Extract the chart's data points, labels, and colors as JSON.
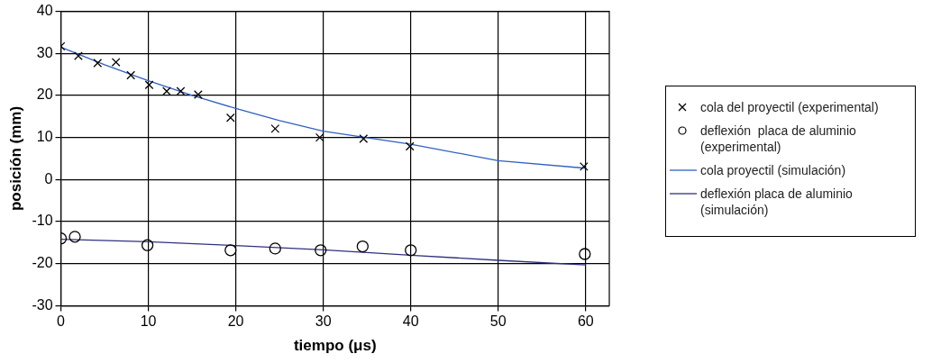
{
  "chart_data": {
    "type": "scatter",
    "xlabel": "tiempo (μs)",
    "ylabel": "posición (mm)",
    "xlim": [
      0,
      62.7
    ],
    "xticks": [
      0,
      10,
      20,
      30,
      40,
      50,
      60
    ],
    "ylim": [
      -30,
      40
    ],
    "yticks": [
      -30,
      -20,
      -10,
      0,
      10,
      20,
      30,
      40
    ],
    "grid": true,
    "legend": "right",
    "series": [
      {
        "name": "cola del proyectil (experimental)",
        "marker": "cross",
        "color": "#000000",
        "x": [
          0,
          2,
          4.2,
          6.3,
          8,
          10.1,
          12.1,
          13.7,
          15.7,
          19.4,
          24.5,
          29.6,
          34.6,
          39.9,
          59.8
        ],
        "values": [
          31.7,
          29.4,
          27.7,
          27.9,
          24.8,
          22.5,
          21,
          21,
          20.2,
          14.7,
          12.1,
          10,
          9.7,
          7.9,
          3.1
        ]
      },
      {
        "name": "deflexión  placa de aluminio (experimental)",
        "marker": "circle",
        "color": "#000000",
        "x": [
          0,
          1.6,
          9.9,
          19.4,
          24.5,
          29.7,
          34.5,
          40,
          59.9
        ],
        "values": [
          -14,
          -13.6,
          -15.6,
          -16.8,
          -16.4,
          -16.8,
          -15.9,
          -16.8,
          -17.7
        ]
      },
      {
        "name": "cola proyectil (simulación)",
        "type": "line",
        "marker": "none",
        "color": "#3060c0",
        "x": [
          0,
          5,
          10,
          15,
          20,
          25,
          30,
          40,
          50,
          60
        ],
        "values": [
          31.5,
          27.3,
          23.5,
          20,
          16.9,
          14,
          11.5,
          8.4,
          4.5,
          2.7
        ]
      },
      {
        "name": "deflexión placa de aluminio (simulación)",
        "type": "line",
        "marker": "none",
        "color": "#303080",
        "x": [
          0,
          10,
          20,
          30,
          40,
          50,
          60
        ],
        "values": [
          -14.2,
          -14.8,
          -15.7,
          -16.7,
          -18,
          -19.2,
          -20.3
        ]
      }
    ]
  }
}
